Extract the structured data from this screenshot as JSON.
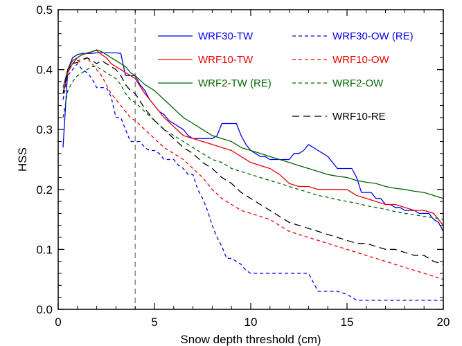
{
  "chart_data": {
    "type": "line",
    "title": "",
    "xlabel": "Snow depth threshold (cm)",
    "ylabel": "HSS",
    "xlim": [
      0,
      20
    ],
    "ylim": [
      0,
      0.5
    ],
    "xticks": [
      0,
      5,
      10,
      15,
      20
    ],
    "xtick_labels": [
      "0",
      "5",
      "10",
      "15",
      "20"
    ],
    "yticks": [
      0.0,
      0.1,
      0.2,
      0.3,
      0.4,
      0.5
    ],
    "ytick_labels": [
      "0.0",
      "0.1",
      "0.2",
      "0.3",
      "0.4",
      "0.5"
    ],
    "grid": false,
    "legend_position": "top-right",
    "reference_line": {
      "x": 4,
      "color": "#888888",
      "style": "dashed"
    },
    "series": [
      {
        "name": "WRF30-TW",
        "color": "#0000ee",
        "style": "solid",
        "x": [
          0.25,
          0.5,
          0.75,
          1,
          1.25,
          1.5,
          1.75,
          2,
          2.25,
          2.5,
          2.75,
          3,
          3.25,
          3.5,
          3.75,
          4,
          4.25,
          4.5,
          4.75,
          5,
          5.25,
          5.5,
          5.75,
          6,
          6.25,
          6.5,
          6.75,
          7,
          7.25,
          7.5,
          7.75,
          8,
          8.25,
          8.5,
          8.75,
          9,
          9.25,
          9.5,
          9.75,
          10,
          10.25,
          10.5,
          10.75,
          11,
          11.25,
          11.5,
          11.75,
          12,
          12.25,
          12.5,
          12.75,
          13,
          13.25,
          13.5,
          13.75,
          14,
          14.25,
          14.5,
          14.75,
          15,
          15.25,
          15.5,
          15.75,
          16,
          16.25,
          16.5,
          16.75,
          17,
          17.25,
          17.5,
          17.75,
          18,
          18.25,
          18.5,
          18.75,
          19,
          19.25,
          19.5,
          19.75,
          20
        ],
        "y": [
          0.27,
          0.4,
          0.42,
          0.425,
          0.427,
          0.427,
          0.427,
          0.428,
          0.428,
          0.428,
          0.428,
          0.428,
          0.427,
          0.39,
          0.39,
          0.39,
          0.375,
          0.365,
          0.35,
          0.34,
          0.33,
          0.325,
          0.315,
          0.31,
          0.305,
          0.3,
          0.29,
          0.285,
          0.285,
          0.285,
          0.285,
          0.285,
          0.29,
          0.31,
          0.31,
          0.31,
          0.31,
          0.29,
          0.275,
          0.265,
          0.26,
          0.255,
          0.255,
          0.25,
          0.25,
          0.25,
          0.25,
          0.25,
          0.26,
          0.26,
          0.265,
          0.275,
          0.27,
          0.265,
          0.26,
          0.255,
          0.245,
          0.235,
          0.235,
          0.235,
          0.235,
          0.22,
          0.195,
          0.195,
          0.195,
          0.185,
          0.185,
          0.175,
          0.175,
          0.17,
          0.17,
          0.165,
          0.165,
          0.165,
          0.16,
          0.16,
          0.16,
          0.15,
          0.145,
          0.13
        ]
      },
      {
        "name": "WRF30-OW (RE)",
        "color": "#0000ee",
        "style": "dashed",
        "x": [
          0.25,
          0.5,
          0.75,
          1,
          1.25,
          1.5,
          1.75,
          2,
          2.25,
          2.5,
          2.75,
          3,
          3.25,
          3.5,
          3.75,
          4,
          4.25,
          4.5,
          4.75,
          5,
          5.25,
          5.5,
          5.75,
          6,
          6.25,
          6.5,
          6.75,
          7,
          7.25,
          7.5,
          7.75,
          8,
          8.25,
          8.5,
          8.75,
          9,
          9.25,
          9.5,
          9.75,
          10,
          10.5,
          11,
          11.5,
          12,
          12.5,
          13,
          13.25,
          13.5,
          14,
          14.5,
          15,
          15.5,
          16,
          16.5,
          17,
          17.5,
          18,
          18.5,
          19,
          19.5,
          20
        ],
        "y": [
          0.35,
          0.39,
          0.4,
          0.41,
          0.4,
          0.395,
          0.385,
          0.37,
          0.37,
          0.37,
          0.355,
          0.32,
          0.32,
          0.3,
          0.28,
          0.28,
          0.28,
          0.27,
          0.265,
          0.265,
          0.26,
          0.25,
          0.25,
          0.25,
          0.24,
          0.235,
          0.225,
          0.225,
          0.2,
          0.185,
          0.165,
          0.14,
          0.12,
          0.105,
          0.085,
          0.085,
          0.08,
          0.075,
          0.065,
          0.06,
          0.06,
          0.06,
          0.06,
          0.06,
          0.06,
          0.06,
          0.045,
          0.03,
          0.03,
          0.03,
          0.025,
          0.015,
          0.015,
          0.015,
          0.015,
          0.015,
          0.015,
          0.015,
          0.015,
          0.015,
          0.015
        ]
      },
      {
        "name": "WRF10-TW",
        "color": "#ee0000",
        "style": "solid",
        "x": [
          0.25,
          0.5,
          0.75,
          1,
          1.25,
          1.5,
          1.75,
          2,
          2.25,
          2.5,
          2.75,
          3,
          3.25,
          3.5,
          3.75,
          4,
          4.5,
          5,
          5.5,
          6,
          6.5,
          7,
          7.5,
          8,
          8.5,
          9,
          9.5,
          10,
          10.5,
          11,
          11.5,
          12,
          12.5,
          13,
          13.5,
          14,
          14.5,
          15,
          15.5,
          16,
          16.5,
          17,
          17.5,
          18,
          18.5,
          19,
          19.5,
          20
        ],
        "y": [
          0.36,
          0.395,
          0.41,
          0.42,
          0.425,
          0.427,
          0.43,
          0.432,
          0.425,
          0.42,
          0.41,
          0.405,
          0.4,
          0.395,
          0.39,
          0.385,
          0.36,
          0.34,
          0.32,
          0.305,
          0.29,
          0.285,
          0.28,
          0.275,
          0.27,
          0.265,
          0.255,
          0.245,
          0.24,
          0.235,
          0.225,
          0.21,
          0.205,
          0.205,
          0.2,
          0.2,
          0.2,
          0.2,
          0.19,
          0.185,
          0.18,
          0.175,
          0.175,
          0.17,
          0.165,
          0.165,
          0.16,
          0.14
        ]
      },
      {
        "name": "WRF10-OW",
        "color": "#ee0000",
        "style": "dashed",
        "x": [
          0.25,
          0.5,
          0.75,
          1,
          1.25,
          1.5,
          1.75,
          2,
          2.25,
          2.5,
          2.75,
          3,
          3.25,
          3.5,
          3.75,
          4,
          4.5,
          5,
          5.5,
          6,
          6.5,
          7,
          7.5,
          8,
          8.5,
          9,
          9.5,
          10,
          10.5,
          11,
          11.5,
          12,
          12.5,
          13,
          13.5,
          14,
          14.5,
          15,
          15.5,
          16,
          16.5,
          17,
          17.5,
          18,
          18.5,
          19,
          19.5,
          20
        ],
        "y": [
          0.36,
          0.4,
          0.41,
          0.415,
          0.417,
          0.42,
          0.41,
          0.4,
          0.39,
          0.375,
          0.36,
          0.35,
          0.34,
          0.33,
          0.32,
          0.315,
          0.3,
          0.285,
          0.27,
          0.26,
          0.25,
          0.235,
          0.22,
          0.2,
          0.185,
          0.175,
          0.165,
          0.16,
          0.155,
          0.15,
          0.14,
          0.13,
          0.125,
          0.12,
          0.115,
          0.11,
          0.105,
          0.1,
          0.095,
          0.09,
          0.085,
          0.08,
          0.075,
          0.07,
          0.065,
          0.06,
          0.055,
          0.05
        ]
      },
      {
        "name": "WRF2-TW (RE)",
        "color": "#006600",
        "style": "solid",
        "x": [
          0.25,
          0.5,
          0.75,
          1,
          1.25,
          1.5,
          1.75,
          2,
          2.25,
          2.5,
          2.75,
          3,
          3.25,
          3.5,
          3.75,
          4,
          4.5,
          5,
          5.5,
          6,
          6.5,
          7,
          7.5,
          8,
          8.5,
          9,
          9.5,
          10,
          10.5,
          11,
          11.5,
          12,
          12.5,
          13,
          13.5,
          14,
          14.5,
          15,
          15.5,
          16,
          16.5,
          17,
          17.5,
          18,
          18.5,
          19,
          19.5,
          20
        ],
        "y": [
          0.37,
          0.4,
          0.415,
          0.42,
          0.425,
          0.428,
          0.43,
          0.433,
          0.43,
          0.425,
          0.42,
          0.415,
          0.41,
          0.405,
          0.395,
          0.39,
          0.375,
          0.365,
          0.35,
          0.335,
          0.32,
          0.31,
          0.3,
          0.29,
          0.285,
          0.28,
          0.27,
          0.265,
          0.26,
          0.255,
          0.25,
          0.245,
          0.24,
          0.235,
          0.23,
          0.225,
          0.222,
          0.22,
          0.215,
          0.212,
          0.21,
          0.205,
          0.202,
          0.2,
          0.197,
          0.195,
          0.19,
          0.185
        ]
      },
      {
        "name": "WRF2-OW",
        "color": "#006600",
        "style": "dashed",
        "x": [
          0.25,
          0.5,
          0.75,
          1,
          1.25,
          1.5,
          1.75,
          2,
          2.25,
          2.5,
          2.75,
          3,
          3.25,
          3.5,
          3.75,
          4,
          4.5,
          5,
          5.5,
          6,
          6.5,
          7,
          7.5,
          8,
          8.5,
          9,
          9.5,
          10,
          10.5,
          11,
          11.5,
          12,
          12.5,
          13,
          13.5,
          14,
          14.5,
          15,
          15.5,
          16,
          16.5,
          17,
          17.5,
          18,
          18.5,
          19,
          19.5,
          20
        ],
        "y": [
          0.32,
          0.365,
          0.38,
          0.39,
          0.395,
          0.4,
          0.405,
          0.405,
          0.4,
          0.395,
          0.39,
          0.385,
          0.375,
          0.36,
          0.35,
          0.345,
          0.33,
          0.315,
          0.3,
          0.29,
          0.28,
          0.27,
          0.26,
          0.25,
          0.245,
          0.235,
          0.23,
          0.225,
          0.22,
          0.215,
          0.21,
          0.205,
          0.2,
          0.195,
          0.19,
          0.187,
          0.183,
          0.18,
          0.177,
          0.173,
          0.17,
          0.167,
          0.163,
          0.16,
          0.158,
          0.155,
          0.153,
          0.15
        ]
      },
      {
        "name": "WRF10-RE",
        "color": "#000000",
        "style": "longdash",
        "x": [
          0.25,
          0.5,
          0.75,
          1,
          1.25,
          1.5,
          1.75,
          2,
          2.25,
          2.5,
          2.75,
          3,
          3.25,
          3.5,
          3.75,
          4,
          4.5,
          5,
          5.5,
          6,
          6.5,
          7,
          7.5,
          8,
          8.5,
          9,
          9.5,
          10,
          10.5,
          11,
          11.5,
          12,
          12.5,
          13,
          13.5,
          14,
          14.5,
          15,
          15.5,
          16,
          16.5,
          17,
          17.5,
          18,
          18.5,
          19,
          19.5,
          20
        ],
        "y": [
          0.36,
          0.4,
          0.41,
          0.412,
          0.415,
          0.42,
          0.415,
          0.41,
          0.415,
          0.41,
          0.405,
          0.4,
          0.39,
          0.375,
          0.365,
          0.36,
          0.335,
          0.315,
          0.3,
          0.285,
          0.27,
          0.26,
          0.245,
          0.235,
          0.22,
          0.21,
          0.195,
          0.185,
          0.175,
          0.165,
          0.155,
          0.145,
          0.14,
          0.135,
          0.13,
          0.125,
          0.12,
          0.115,
          0.11,
          0.11,
          0.105,
          0.1,
          0.1,
          0.095,
          0.09,
          0.09,
          0.08,
          0.075
        ]
      }
    ]
  }
}
